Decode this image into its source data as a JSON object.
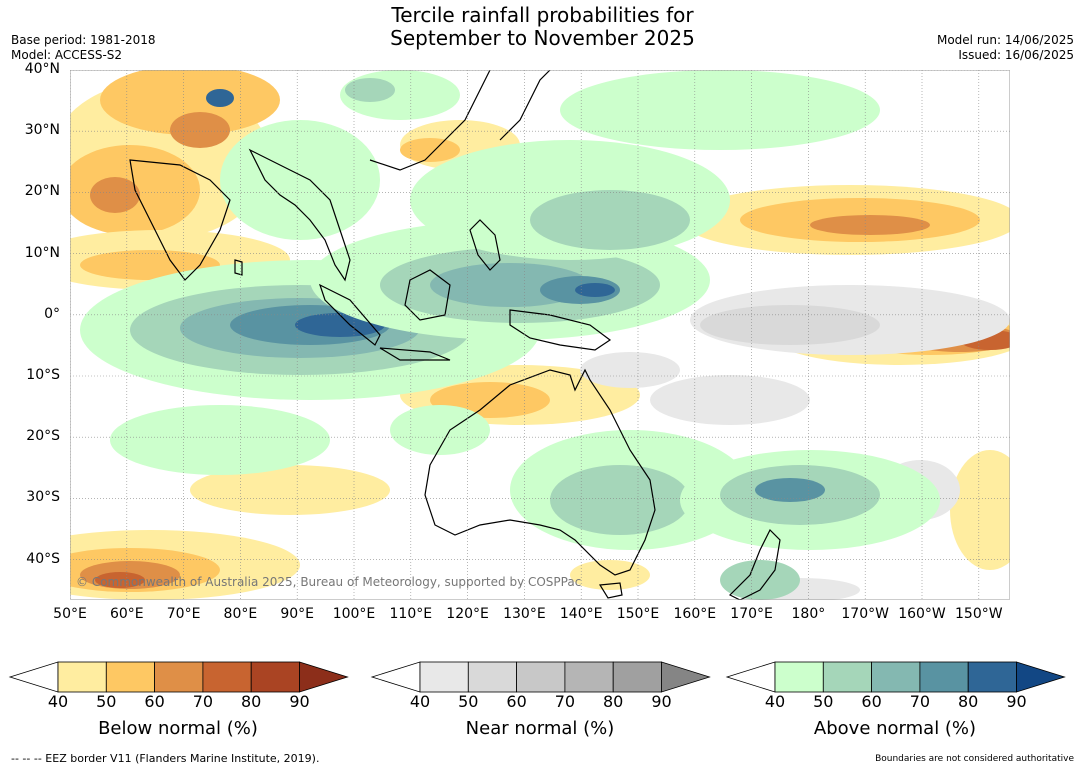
{
  "header": {
    "title_line1": "Tercile rainfall probabilities for",
    "title_line2": "September to November 2025",
    "base_period": "Base period: 1981-2018",
    "model": "Model: ACCESS-S2",
    "model_run": "Model run: 14/06/2025",
    "issued": "Issued: 16/06/2025"
  },
  "map": {
    "copyright": "© Commonwealth of Australia 2025, Bureau of Meteorology, supported by COSPPac",
    "lat_labels": [
      "40°N",
      "30°N",
      "20°N",
      "10°N",
      "0°",
      "10°S",
      "20°S",
      "30°S",
      "40°S"
    ],
    "lon_labels": [
      "50°E",
      "60°E",
      "70°E",
      "80°E",
      "90°E",
      "100°E",
      "110°E",
      "120°E",
      "130°E",
      "140°E",
      "150°E",
      "160°E",
      "170°E",
      "180°",
      "170°W",
      "160°W",
      "150°W"
    ]
  },
  "legend": {
    "below": {
      "title": "Below normal (%)",
      "ticks": [
        "40",
        "50",
        "60",
        "70",
        "80",
        "90"
      ],
      "colors": [
        "#ffeda0",
        "#fec863",
        "#df8f47",
        "#c86430",
        "#aa4423",
        "#8c2e1a"
      ]
    },
    "near": {
      "title": "Near normal (%)",
      "ticks": [
        "40",
        "50",
        "60",
        "70",
        "80",
        "90"
      ],
      "colors": [
        "#e8e8e8",
        "#d9d9d9",
        "#c8c8c8",
        "#b5b5b5",
        "#a0a0a0",
        "#858585"
      ]
    },
    "above": {
      "title": "Above normal (%)",
      "ticks": [
        "40",
        "50",
        "60",
        "70",
        "80",
        "90"
      ],
      "colors": [
        "#ccffcc",
        "#a5d6b9",
        "#84b8b1",
        "#5993a2",
        "#2f6696",
        "#124784"
      ]
    }
  },
  "footer": {
    "eez_note": "--  --  -- EEZ border V11 (Flanders Marine Institute, 2019).",
    "disclaimer": "Boundaries are not considered authoritative"
  }
}
